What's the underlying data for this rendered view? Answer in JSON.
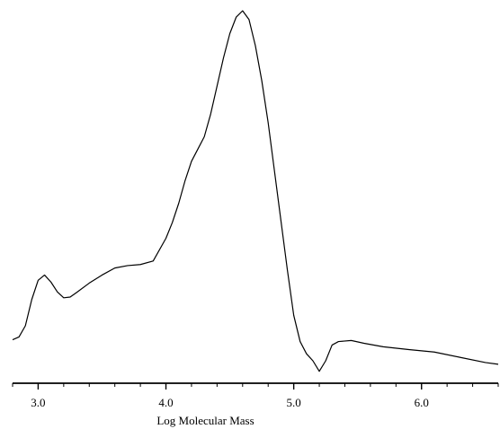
{
  "chart_data": {
    "type": "line",
    "title": "",
    "xlabel": "Log Molecular Mass",
    "ylabel": "",
    "xlim": [
      2.8,
      6.6
    ],
    "ylim": [
      0,
      1
    ],
    "grid": false,
    "legend": "none",
    "x_ticks": [
      {
        "value": 3.0,
        "label": "3.0"
      },
      {
        "value": 4.0,
        "label": "4.0"
      },
      {
        "value": 5.0,
        "label": "5.0"
      },
      {
        "value": 6.0,
        "label": "6.0"
      }
    ],
    "minor_tick_step": 0.2,
    "series": [
      {
        "color": "#000000",
        "points": [
          [
            2.8,
            0.06
          ],
          [
            2.85,
            0.068
          ],
          [
            2.9,
            0.1
          ],
          [
            2.95,
            0.175
          ],
          [
            3.0,
            0.23
          ],
          [
            3.05,
            0.245
          ],
          [
            3.1,
            0.225
          ],
          [
            3.15,
            0.197
          ],
          [
            3.2,
            0.18
          ],
          [
            3.25,
            0.182
          ],
          [
            3.3,
            0.195
          ],
          [
            3.4,
            0.222
          ],
          [
            3.5,
            0.245
          ],
          [
            3.6,
            0.265
          ],
          [
            3.7,
            0.272
          ],
          [
            3.8,
            0.275
          ],
          [
            3.9,
            0.285
          ],
          [
            4.0,
            0.35
          ],
          [
            4.05,
            0.395
          ],
          [
            4.1,
            0.45
          ],
          [
            4.15,
            0.515
          ],
          [
            4.2,
            0.57
          ],
          [
            4.25,
            0.605
          ],
          [
            4.3,
            0.64
          ],
          [
            4.35,
            0.705
          ],
          [
            4.4,
            0.785
          ],
          [
            4.45,
            0.865
          ],
          [
            4.5,
            0.935
          ],
          [
            4.55,
            0.982
          ],
          [
            4.6,
            1.0
          ],
          [
            4.65,
            0.975
          ],
          [
            4.7,
            0.9
          ],
          [
            4.75,
            0.8
          ],
          [
            4.8,
            0.68
          ],
          [
            4.85,
            0.54
          ],
          [
            4.9,
            0.4
          ],
          [
            4.95,
            0.26
          ],
          [
            5.0,
            0.13
          ],
          [
            5.05,
            0.055
          ],
          [
            5.1,
            0.02
          ],
          [
            5.15,
            0.0
          ],
          [
            5.2,
            -0.03
          ],
          [
            5.25,
            0.0
          ],
          [
            5.3,
            0.045
          ],
          [
            5.35,
            0.055
          ],
          [
            5.45,
            0.058
          ],
          [
            5.55,
            0.05
          ],
          [
            5.7,
            0.04
          ],
          [
            5.9,
            0.032
          ],
          [
            6.1,
            0.025
          ],
          [
            6.3,
            0.01
          ],
          [
            6.5,
            -0.005
          ],
          [
            6.6,
            -0.01
          ]
        ]
      }
    ]
  }
}
